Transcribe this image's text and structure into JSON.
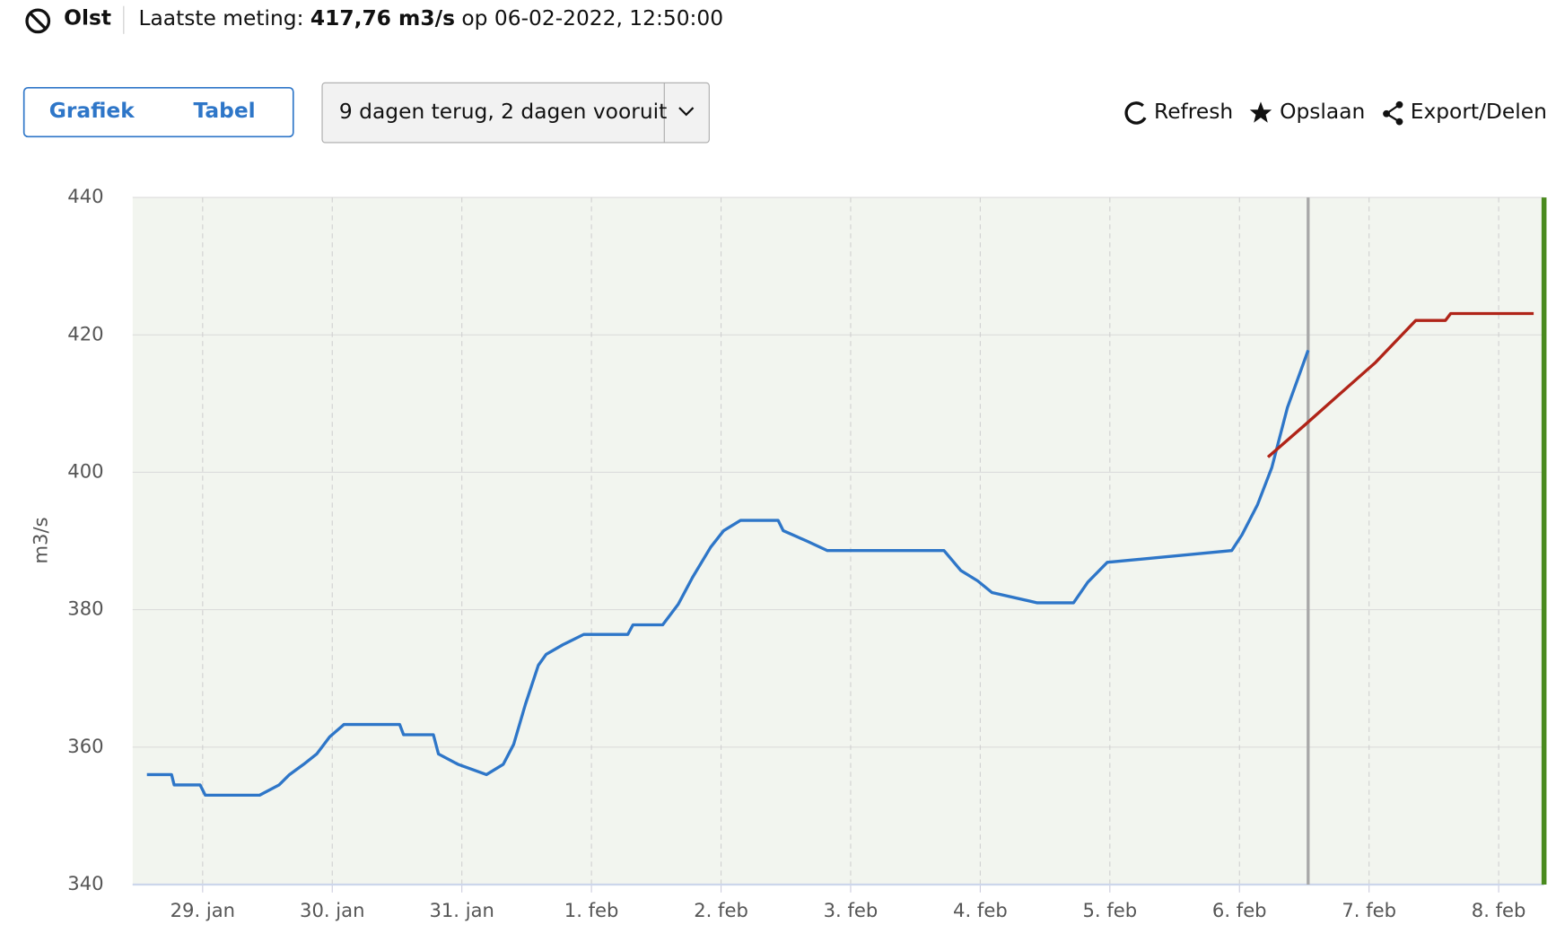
{
  "header": {
    "station": "Olst",
    "label": "Laatste meting:",
    "value": "417,76 m3/s",
    "suffix": "op 06-02-2022, 12:50:00"
  },
  "tabs": [
    "Grafiek",
    "Tabel"
  ],
  "period": "9 dagen terug, 2 dagen vooruit",
  "actions": [
    "Refresh",
    "Opslaan",
    "Export/Delen"
  ],
  "chart_data": {
    "type": "line",
    "y_label": "m3/s",
    "xlim": [
      28.46,
      39.35
    ],
    "xticks": [
      {
        "value": 29,
        "label": "29. jan"
      },
      {
        "value": 30,
        "label": "30. jan"
      },
      {
        "value": 31,
        "label": "31. jan"
      },
      {
        "value": 32,
        "label": "1. feb"
      },
      {
        "value": 33,
        "label": "2. feb"
      },
      {
        "value": 34,
        "label": "3. feb"
      },
      {
        "value": 35,
        "label": "4. feb"
      },
      {
        "value": 36,
        "label": "5. feb"
      },
      {
        "value": 37,
        "label": "6. feb"
      },
      {
        "value": 38,
        "label": "7. feb"
      },
      {
        "value": 39,
        "label": "8. feb"
      }
    ],
    "ylim": [
      340,
      440
    ],
    "yticks": [
      340,
      360,
      380,
      400,
      420,
      440
    ],
    "grid": true,
    "series": [
      {
        "color": "#2e76c8",
        "x": [
          28.57,
          28.76,
          28.78,
          28.98,
          29.02,
          29.44,
          29.59,
          29.67,
          29.78,
          29.88,
          29.98,
          30.09,
          30.52,
          30.55,
          30.78,
          30.82,
          30.97,
          31.19,
          31.32,
          31.4,
          31.49,
          31.59,
          31.65,
          31.78,
          31.94,
          32.28,
          32.32,
          32.55,
          32.67,
          32.78,
          32.92,
          33.02,
          33.15,
          33.44,
          33.48,
          33.66,
          33.82,
          34.72,
          34.85,
          34.98,
          35.09,
          35.44,
          35.72,
          35.83,
          35.98,
          36.94,
          37.02,
          37.14,
          37.25,
          37.37,
          37.53
        ],
        "values": [
          356,
          356,
          354.5,
          354.5,
          353,
          353,
          354.5,
          356,
          357.5,
          359,
          361.5,
          363.3,
          363.3,
          361.8,
          361.8,
          359,
          357.5,
          356,
          357.5,
          360.4,
          366.2,
          371.9,
          373.5,
          374.9,
          376.4,
          376.4,
          377.8,
          377.8,
          380.8,
          384.7,
          389.1,
          391.5,
          393,
          393,
          391.5,
          390,
          388.6,
          388.6,
          385.7,
          384.2,
          382.5,
          381,
          381,
          384,
          386.9,
          388.6,
          390.9,
          395.3,
          400.7,
          409.4,
          417.76
        ]
      },
      {
        "color": "#b02418",
        "x": [
          37.22,
          37.5,
          37.75,
          38.05,
          38.36,
          38.59,
          38.63,
          39.27
        ],
        "values": [
          402.2,
          406.8,
          411,
          416,
          422.1,
          422.1,
          423.1,
          423.1
        ]
      }
    ]
  }
}
